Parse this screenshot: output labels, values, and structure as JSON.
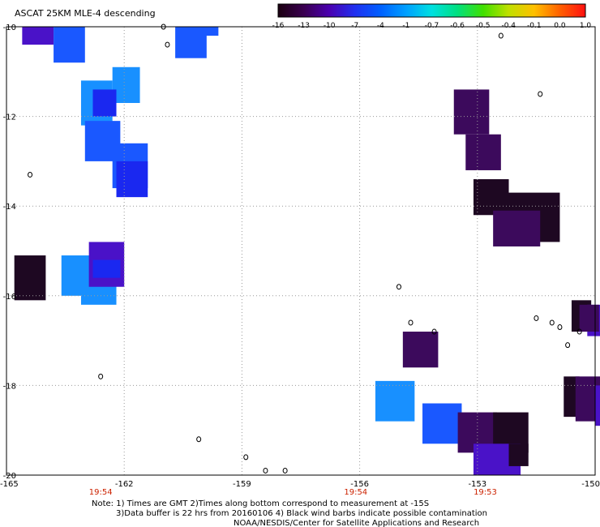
{
  "title": "ASCAT 25KM MLE-4 descending",
  "colorbar": {
    "labels": [
      "-16",
      "-13",
      "-10",
      "-7",
      "-4",
      "-1",
      "-0.7",
      "-0.6",
      "-0.5",
      "-0.4",
      "-0.1",
      "0.0",
      "1.0"
    ],
    "colors": [
      "#1a0010",
      "#3a0050",
      "#4a00b0",
      "#2030f0",
      "#0060ff",
      "#00a0ff",
      "#00e0e0",
      "#00e080",
      "#40e000",
      "#c0e000",
      "#ffc000",
      "#ff6000",
      "#ff1010"
    ]
  },
  "axes": {
    "lon_ticks": [
      "-165",
      "-162",
      "-159",
      "-156",
      "-153",
      "-150"
    ],
    "lat_ticks": [
      "-10",
      "-12",
      "-14",
      "-16",
      "-18",
      "-20"
    ]
  },
  "times": [
    "19:54",
    "19:54",
    "19:53"
  ],
  "notes": {
    "line1": "Note: 1) Times are GMT 2)Times along bottom correspond to measurement at -15S",
    "line2": "3)Data buffer is 22 hrs from 20160106 4) Black wind barbs indicate possible contamination",
    "line3": "NOAA/NESDIS/Center for Satellite Applications and Research"
  },
  "data_cells": [
    {
      "lon": -164.6,
      "lat": -10.0,
      "lon2": -163.8,
      "lat2": -10.4,
      "value": -10
    },
    {
      "lon": -163.8,
      "lat": -10.0,
      "lon2": -163.0,
      "lat2": -10.8,
      "value": -5
    },
    {
      "lon": -160.4,
      "lat": -10.0,
      "lon2": -159.6,
      "lat2": -10.2,
      "value": -5
    },
    {
      "lon": -160.7,
      "lat": -10.0,
      "lon2": -159.9,
      "lat2": -10.7,
      "value": -5
    },
    {
      "lon": -162.3,
      "lat": -10.9,
      "lon2": -161.6,
      "lat2": -11.7,
      "value": -4
    },
    {
      "lon": -163.1,
      "lat": -11.2,
      "lon2": -162.3,
      "lat2": -12.2,
      "value": -4
    },
    {
      "lon": -162.8,
      "lat": -11.4,
      "lon2": -162.2,
      "lat2": -12.0,
      "value": -7
    },
    {
      "lon": -163.0,
      "lat": -12.1,
      "lon2": -162.1,
      "lat2": -13.0,
      "value": -5
    },
    {
      "lon": -162.3,
      "lat": -12.6,
      "lon2": -161.4,
      "lat2": -13.6,
      "value": -5
    },
    {
      "lon": -162.2,
      "lat": -13.0,
      "lon2": -161.4,
      "lat2": -13.8,
      "value": -7
    },
    {
      "lon": -164.8,
      "lat": -15.1,
      "lon2": -164.0,
      "lat2": -16.1,
      "value": -16
    },
    {
      "lon": -163.6,
      "lat": -15.1,
      "lon2": -162.7,
      "lat2": -16.0,
      "value": -4
    },
    {
      "lon": -163.1,
      "lat": -15.5,
      "lon2": -162.2,
      "lat2": -16.2,
      "value": -4
    },
    {
      "lon": -162.9,
      "lat": -14.8,
      "lon2": -162.0,
      "lat2": -15.8,
      "value": -9
    },
    {
      "lon": -162.8,
      "lat": -15.2,
      "lon2": -162.1,
      "lat2": -15.6,
      "value": -7
    },
    {
      "lon": -153.6,
      "lat": -11.4,
      "lon2": -152.7,
      "lat2": -12.4,
      "value": -13
    },
    {
      "lon": -153.3,
      "lat": -12.4,
      "lon2": -152.4,
      "lat2": -13.2,
      "value": -13
    },
    {
      "lon": -153.1,
      "lat": -13.4,
      "lon2": -152.2,
      "lat2": -14.2,
      "value": -16
    },
    {
      "lon": -152.4,
      "lat": -13.7,
      "lon2": -150.9,
      "lat2": -14.8,
      "value": -16
    },
    {
      "lon": -152.6,
      "lat": -14.1,
      "lon2": -151.4,
      "lat2": -14.9,
      "value": -13
    },
    {
      "lon": -154.9,
      "lat": -16.8,
      "lon2": -154.0,
      "lat2": -17.6,
      "value": -13
    },
    {
      "lon": -150.6,
      "lat": -16.1,
      "lon2": -150.1,
      "lat2": -16.8,
      "value": -16
    },
    {
      "lon": -150.2,
      "lat": -16.2,
      "lon2": -149.4,
      "lat2": -16.9,
      "value": -10
    },
    {
      "lon": -150.4,
      "lat": -16.2,
      "lon2": -149.9,
      "lat2": -16.8,
      "value": -12
    },
    {
      "lon": -150.8,
      "lat": -17.8,
      "lon2": -150.4,
      "lat2": -18.7,
      "value": -16
    },
    {
      "lon": -150.5,
      "lat": -17.8,
      "lon2": -149.5,
      "lat2": -18.8,
      "value": -13
    },
    {
      "lon": -150.0,
      "lat": -18.0,
      "lon2": -149.6,
      "lat2": -18.9,
      "value": -10
    },
    {
      "lon": -155.6,
      "lat": -17.9,
      "lon2": -154.6,
      "lat2": -18.8,
      "value": -4
    },
    {
      "lon": -154.4,
      "lat": -18.4,
      "lon2": -153.4,
      "lat2": -19.3,
      "value": -5
    },
    {
      "lon": -153.5,
      "lat": -18.6,
      "lon2": -152.5,
      "lat2": -19.5,
      "value": -13
    },
    {
      "lon": -152.6,
      "lat": -18.6,
      "lon2": -151.7,
      "lat2": -19.5,
      "value": -16
    },
    {
      "lon": -153.1,
      "lat": -19.3,
      "lon2": -151.9,
      "lat2": -20.0,
      "value": -10
    },
    {
      "lon": -152.2,
      "lat": -19.3,
      "lon2": -151.7,
      "lat2": -19.8,
      "value": -16
    }
  ],
  "islands": [
    {
      "lon": -161.0,
      "lat": -10.0
    },
    {
      "lon": -160.9,
      "lat": -10.4
    },
    {
      "lon": -164.4,
      "lat": -13.3
    },
    {
      "lon": -162.6,
      "lat": -17.8
    },
    {
      "lon": -160.1,
      "lat": -19.2
    },
    {
      "lon": -158.9,
      "lat": -19.6
    },
    {
      "lon": -158.4,
      "lat": -19.9
    },
    {
      "lon": -157.9,
      "lat": -19.9
    },
    {
      "lon": -152.4,
      "lat": -10.2
    },
    {
      "lon": -151.4,
      "lat": -11.5
    },
    {
      "lon": -155.0,
      "lat": -15.8
    },
    {
      "lon": -154.7,
      "lat": -16.6
    },
    {
      "lon": -154.1,
      "lat": -16.8
    },
    {
      "lon": -151.5,
      "lat": -16.5
    },
    {
      "lon": -151.1,
      "lat": -16.6
    },
    {
      "lon": -150.9,
      "lat": -16.7
    },
    {
      "lon": -150.4,
      "lat": -16.8
    },
    {
      "lon": -150.7,
      "lat": -17.1
    }
  ]
}
